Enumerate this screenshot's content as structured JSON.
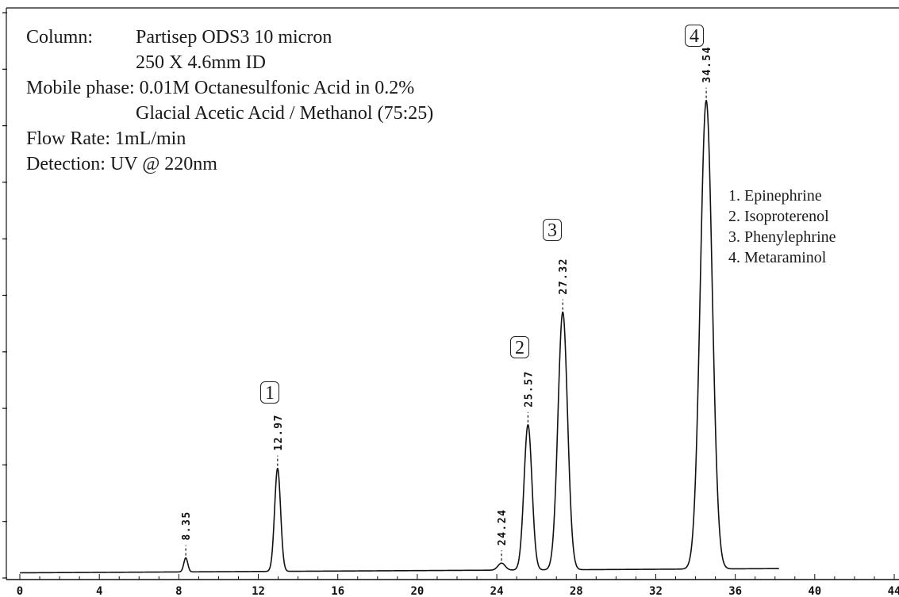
{
  "info": {
    "column_label": "Column:",
    "column_line1": "Partisep ODS3 10 micron",
    "column_line2": "250 X 4.6mm ID",
    "mobile_label": "Mobile phase:",
    "mobile_line1": "0.01M Octanesulfonic Acid in 0.2%",
    "mobile_line2": "Glacial Acetic Acid / Methanol (75:25)",
    "flow_label": "Flow Rate:",
    "flow_value": "1mL/min",
    "detect_label": "Detection:",
    "detect_value": "UV @ 220nm"
  },
  "legend": [
    "1. Epinephrine",
    "2. Isoproterenol",
    "3. Phenylephrine",
    "4. Metaraminol"
  ],
  "peak_numbers": [
    "1",
    "2",
    "3",
    "4"
  ],
  "colors": {
    "trace": "#111111",
    "text": "#1a1a1a",
    "background": "#ffffff"
  },
  "chart_data": {
    "type": "line",
    "xlim": [
      0,
      44
    ],
    "x_ticks": [
      0,
      4,
      8,
      12,
      16,
      20,
      24,
      28,
      32,
      36,
      40,
      44
    ],
    "x_tick_labels": [
      "0",
      "4",
      "8",
      "12",
      "16",
      "20",
      "24",
      "28",
      "32",
      "36",
      "40",
      "44"
    ],
    "peaks": [
      {
        "retention_time": 8.35,
        "label": "8.35",
        "relative_height": 0.03,
        "number": ""
      },
      {
        "retention_time": 12.97,
        "label": "12.97",
        "relative_height": 0.22,
        "number": "1"
      },
      {
        "retention_time": 24.24,
        "label": "24.24",
        "relative_height": 0.015,
        "number": ""
      },
      {
        "retention_time": 25.57,
        "label": "25.57",
        "relative_height": 0.31,
        "number": "2"
      },
      {
        "retention_time": 27.32,
        "label": "27.32",
        "relative_height": 0.55,
        "number": "3"
      },
      {
        "retention_time": 34.54,
        "label": "34.54",
        "relative_height": 1.0,
        "number": "4"
      }
    ],
    "grid": false,
    "legend_position": "right"
  }
}
